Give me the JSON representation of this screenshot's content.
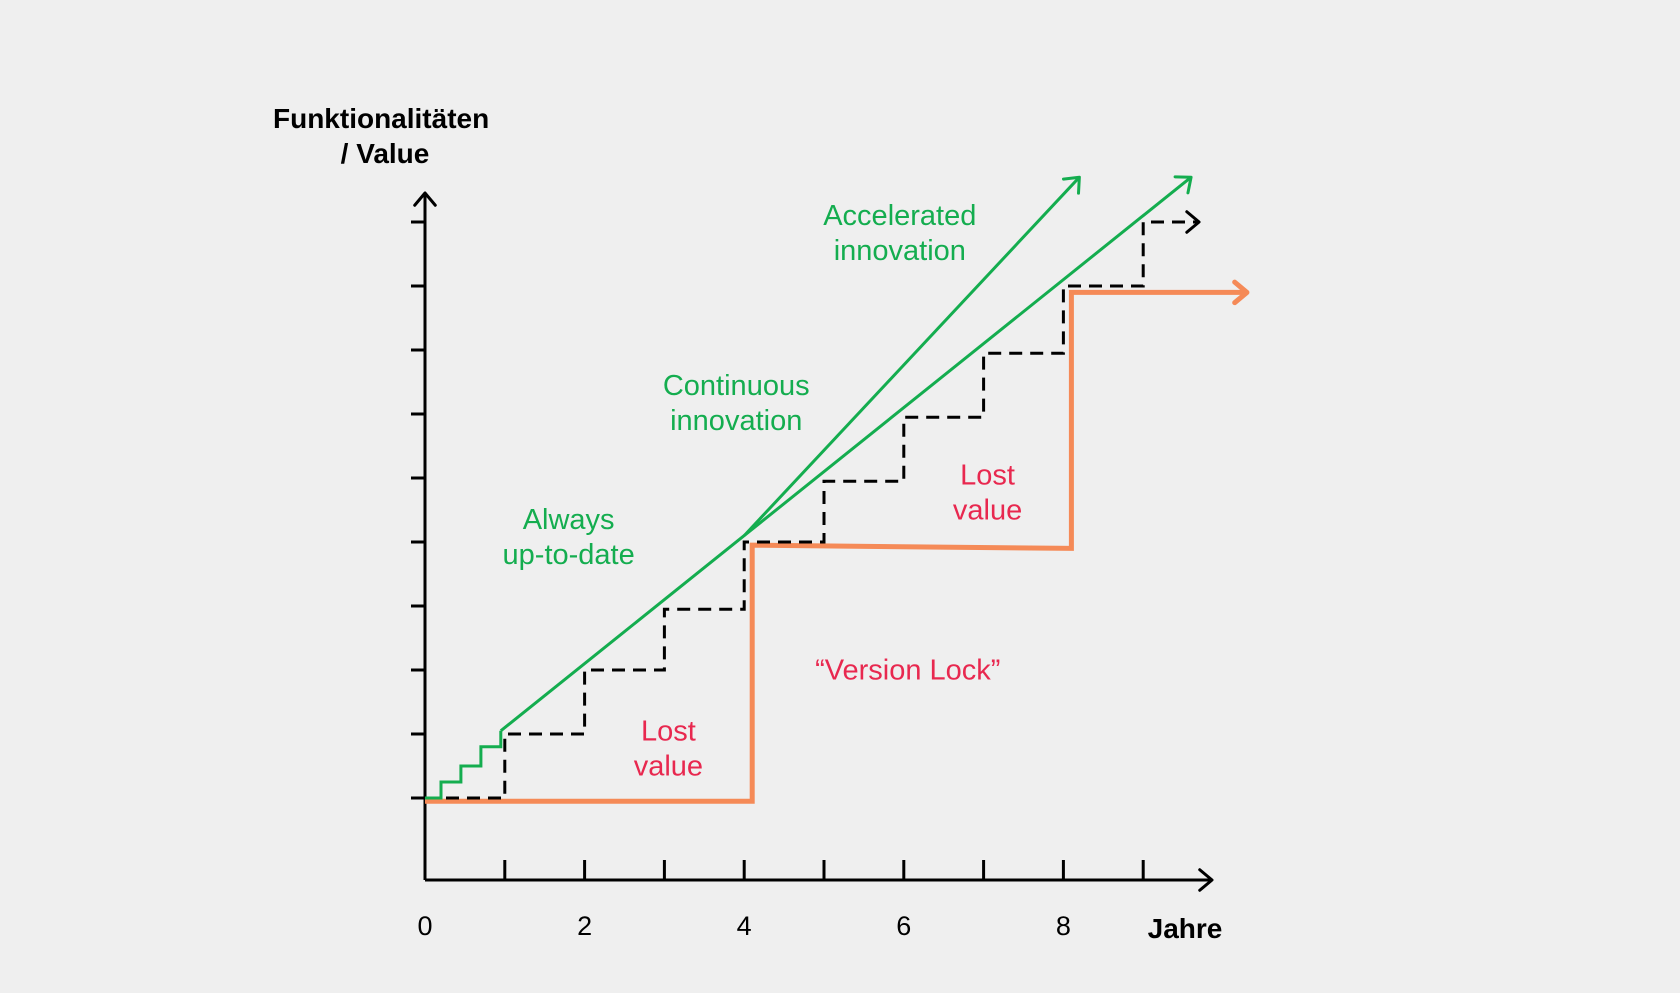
{
  "chart_data": {
    "type": "line",
    "ylabel_lines": [
      "Funktionalitäten",
      "/ Value"
    ],
    "xlabel": "Jahre",
    "xlim": [
      0,
      10
    ],
    "ylim": [
      -1,
      10
    ],
    "x_tick_labels": [
      {
        "value": 0,
        "label": "0"
      },
      {
        "value": 2,
        "label": "2"
      },
      {
        "value": 4,
        "label": "4"
      },
      {
        "value": 6,
        "label": "6"
      },
      {
        "value": 8,
        "label": "8"
      }
    ],
    "x_minor_ticks": [
      1,
      2,
      3,
      4,
      5,
      6,
      7,
      8,
      9
    ],
    "y_ticks": [
      0,
      1,
      2,
      3,
      4,
      5,
      6,
      7,
      8,
      9
    ],
    "grid": false,
    "series": [
      {
        "key": "version_lock",
        "style": "step",
        "color": "#f58a57",
        "points": [
          [
            0,
            -0.05
          ],
          [
            4.1,
            -0.05
          ],
          [
            4.1,
            3.95
          ],
          [
            8.1,
            3.9
          ],
          [
            8.1,
            7.9
          ],
          [
            10.3,
            7.9
          ]
        ],
        "arrow": true
      },
      {
        "key": "regular_updates",
        "style": "dashed-step",
        "color": "#000000",
        "points": [
          [
            0,
            0
          ],
          [
            1,
            0
          ],
          [
            1,
            1
          ],
          [
            2,
            1
          ],
          [
            2,
            2
          ],
          [
            3,
            2
          ],
          [
            3,
            2.95
          ],
          [
            4,
            2.95
          ],
          [
            4,
            4
          ],
          [
            5,
            4
          ],
          [
            5,
            4.95
          ],
          [
            6,
            4.95
          ],
          [
            6,
            5.95
          ],
          [
            7,
            5.95
          ],
          [
            7,
            6.95
          ],
          [
            8,
            6.95
          ],
          [
            8,
            8
          ],
          [
            9,
            8
          ],
          [
            9,
            9
          ],
          [
            9.7,
            9
          ]
        ],
        "arrow": true
      },
      {
        "key": "always_up_to_date",
        "style": "step",
        "color": "#14ad4f",
        "points": [
          [
            0,
            0
          ],
          [
            0.2,
            0
          ],
          [
            0.2,
            0.25
          ],
          [
            0.45,
            0.25
          ],
          [
            0.45,
            0.5
          ],
          [
            0.7,
            0.5
          ],
          [
            0.7,
            0.8
          ],
          [
            0.95,
            0.8
          ],
          [
            0.95,
            1.05
          ]
        ]
      },
      {
        "key": "continuous_innovation",
        "style": "line",
        "color": "#14ad4f",
        "points": [
          [
            0.95,
            1.05
          ],
          [
            4,
            4.1
          ],
          [
            9.6,
            9.7
          ]
        ],
        "arrow": true
      },
      {
        "key": "accelerated_innovation",
        "style": "line",
        "color": "#14ad4f",
        "points": [
          [
            4,
            4.1
          ],
          [
            8.2,
            9.7
          ]
        ],
        "arrow": true
      }
    ],
    "annotations": [
      {
        "lines": [
          "Accelerated",
          "innovation"
        ],
        "x": 5.95,
        "y": 8.95,
        "color": "#14ad4f"
      },
      {
        "lines": [
          "Continuous",
          "innovation"
        ],
        "x": 3.9,
        "y": 6.3,
        "color": "#14ad4f"
      },
      {
        "lines": [
          "Always",
          "up-to-date"
        ],
        "x": 1.8,
        "y": 4.2,
        "color": "#14ad4f"
      },
      {
        "lines": [
          "Lost",
          "value"
        ],
        "x": 7.05,
        "y": 4.9,
        "color": "#e8284f"
      },
      {
        "lines": [
          "Lost",
          "value"
        ],
        "x": 3.05,
        "y": 0.9,
        "color": "#e8284f"
      },
      {
        "lines": [
          "“Version Lock”"
        ],
        "x": 6.05,
        "y": 1.85,
        "color": "#e8284f"
      }
    ]
  }
}
